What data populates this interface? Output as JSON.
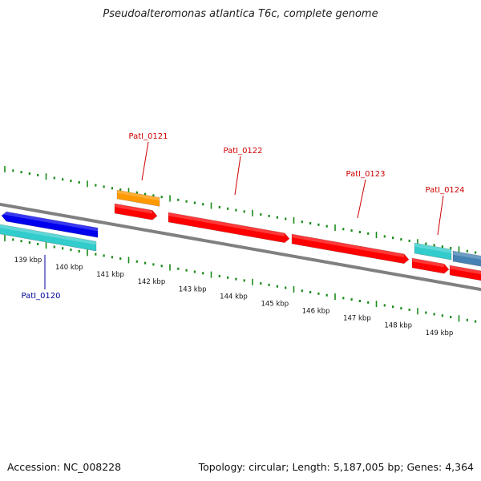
{
  "title": "Pseudoalteromonas atlantica T6c, complete genome",
  "footer": {
    "accession_label": "Accession:",
    "accession": "NC_008228",
    "topology_label": "Topology:",
    "topology": "circular",
    "length_label": "Length:",
    "length": "5,187,005 bp",
    "genes_label": "Genes:",
    "genes": "4,364"
  },
  "scale_ticks": [
    "139 kbp",
    "140 kbp",
    "141 kbp",
    "142 kbp",
    "143 kbp",
    "144 kbp",
    "145 kbp",
    "146 kbp",
    "147 kbp",
    "148 kbp",
    "149 kbp"
  ],
  "gene_labels": [
    "PatI_0120",
    "PatI_0121",
    "PatI_0122",
    "PatI_0123",
    "PatI_0124"
  ],
  "colors": {
    "backbone": "#808080",
    "tick": "#1a8a1a",
    "red_gene": "#ff0000",
    "orange_gene": "#ff9900",
    "cyan_gene": "#33cccc",
    "blue_gene": "#0000ee",
    "steelblue_gene": "#4682b4",
    "label_red": "#cc0000",
    "label_blue": "#000099"
  }
}
